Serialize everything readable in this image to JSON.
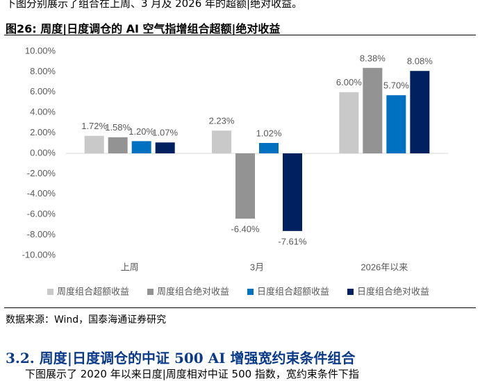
{
  "intro_text": "下图分别展示了组合在上周、3 月及 2026 年的超额|绝对收益。",
  "figure_title": "图26:  周度|日度调仓的 AI 空气指增组合超额|绝对收益",
  "chart_data": {
    "type": "bar",
    "categories": [
      "上周",
      "3月",
      "2026年以来"
    ],
    "series": [
      {
        "name": "周度组合超额收益",
        "color": "#c9c9c9",
        "values": [
          1.72,
          2.23,
          6.0
        ],
        "value_labels": [
          "1.72%",
          "2.23%",
          "6.00%"
        ]
      },
      {
        "name": "周度组合绝对收益",
        "color": "#939393",
        "values": [
          1.58,
          -6.4,
          8.38
        ],
        "value_labels": [
          "1.58%",
          "-6.40%",
          "8.38%"
        ]
      },
      {
        "name": "日度组合超额收益",
        "color": "#0070c0",
        "values": [
          1.2,
          1.02,
          5.7
        ],
        "value_labels": [
          "1.20%",
          "1.02%",
          "5.70%"
        ]
      },
      {
        "name": "日度组合绝对收益",
        "color": "#002060",
        "values": [
          1.07,
          -7.61,
          8.08
        ],
        "value_labels": [
          "1.07%",
          "-7.61%",
          "8.08%"
        ]
      }
    ],
    "ylim": [
      -10,
      10
    ],
    "yticks": [
      {
        "value": -10,
        "label": "-10.00%"
      },
      {
        "value": -8,
        "label": "-8.00%"
      },
      {
        "value": -6,
        "label": "-6.00%"
      },
      {
        "value": -4,
        "label": "-4.00%"
      },
      {
        "value": -2,
        "label": "-2.00%"
      },
      {
        "value": 0,
        "label": "0.00%"
      },
      {
        "value": 2,
        "label": "2.00%"
      },
      {
        "value": 4,
        "label": "4.00%"
      },
      {
        "value": 6,
        "label": "6.00%"
      },
      {
        "value": 8,
        "label": "8.00%"
      },
      {
        "value": 10,
        "label": "10.00%"
      }
    ],
    "legend": "bottom"
  },
  "source": "数据来源：Wind，国泰海通证券研究",
  "section_heading": "3.2.   周度|日度调仓的中证 500 AI 增强宽约束条件组合",
  "body_text": "下图展示了 2020 年以来日度|周度相对中证 500 指数，宽约束条件下指"
}
